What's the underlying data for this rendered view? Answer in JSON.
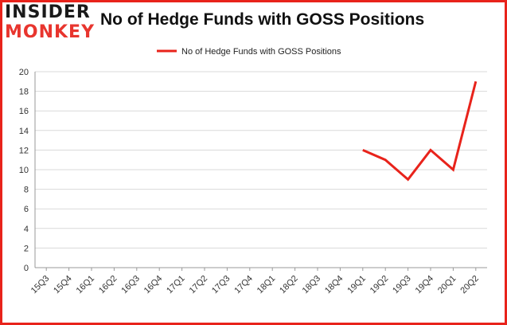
{
  "logo": {
    "line1": "INSIDER",
    "line2": "MONKEY"
  },
  "title": "No of Hedge Funds with GOSS Positions",
  "colors": {
    "series": "#e8231b",
    "frame": "#e8231b",
    "grid": "#d9d9d9",
    "axis": "#999999"
  },
  "chart_data": {
    "type": "line",
    "title": "No of Hedge Funds with GOSS Positions",
    "xlabel": "",
    "ylabel": "",
    "legend_position": "top-center",
    "grid": true,
    "ylim": [
      0,
      20
    ],
    "yticks": [
      0,
      2,
      4,
      6,
      8,
      10,
      12,
      14,
      16,
      18,
      20
    ],
    "categories": [
      "15Q3",
      "15Q4",
      "16Q1",
      "16Q2",
      "16Q3",
      "16Q4",
      "17Q1",
      "17Q2",
      "17Q3",
      "17Q4",
      "18Q1",
      "18Q2",
      "18Q3",
      "18Q4",
      "19Q1",
      "19Q2",
      "19Q3",
      "19Q4",
      "20Q1",
      "20Q2"
    ],
    "series": [
      {
        "name": "No of Hedge Funds with GOSS Positions",
        "values": [
          null,
          null,
          null,
          null,
          null,
          null,
          null,
          null,
          null,
          null,
          null,
          null,
          null,
          null,
          12,
          11,
          9,
          12,
          10,
          19
        ]
      }
    ]
  }
}
